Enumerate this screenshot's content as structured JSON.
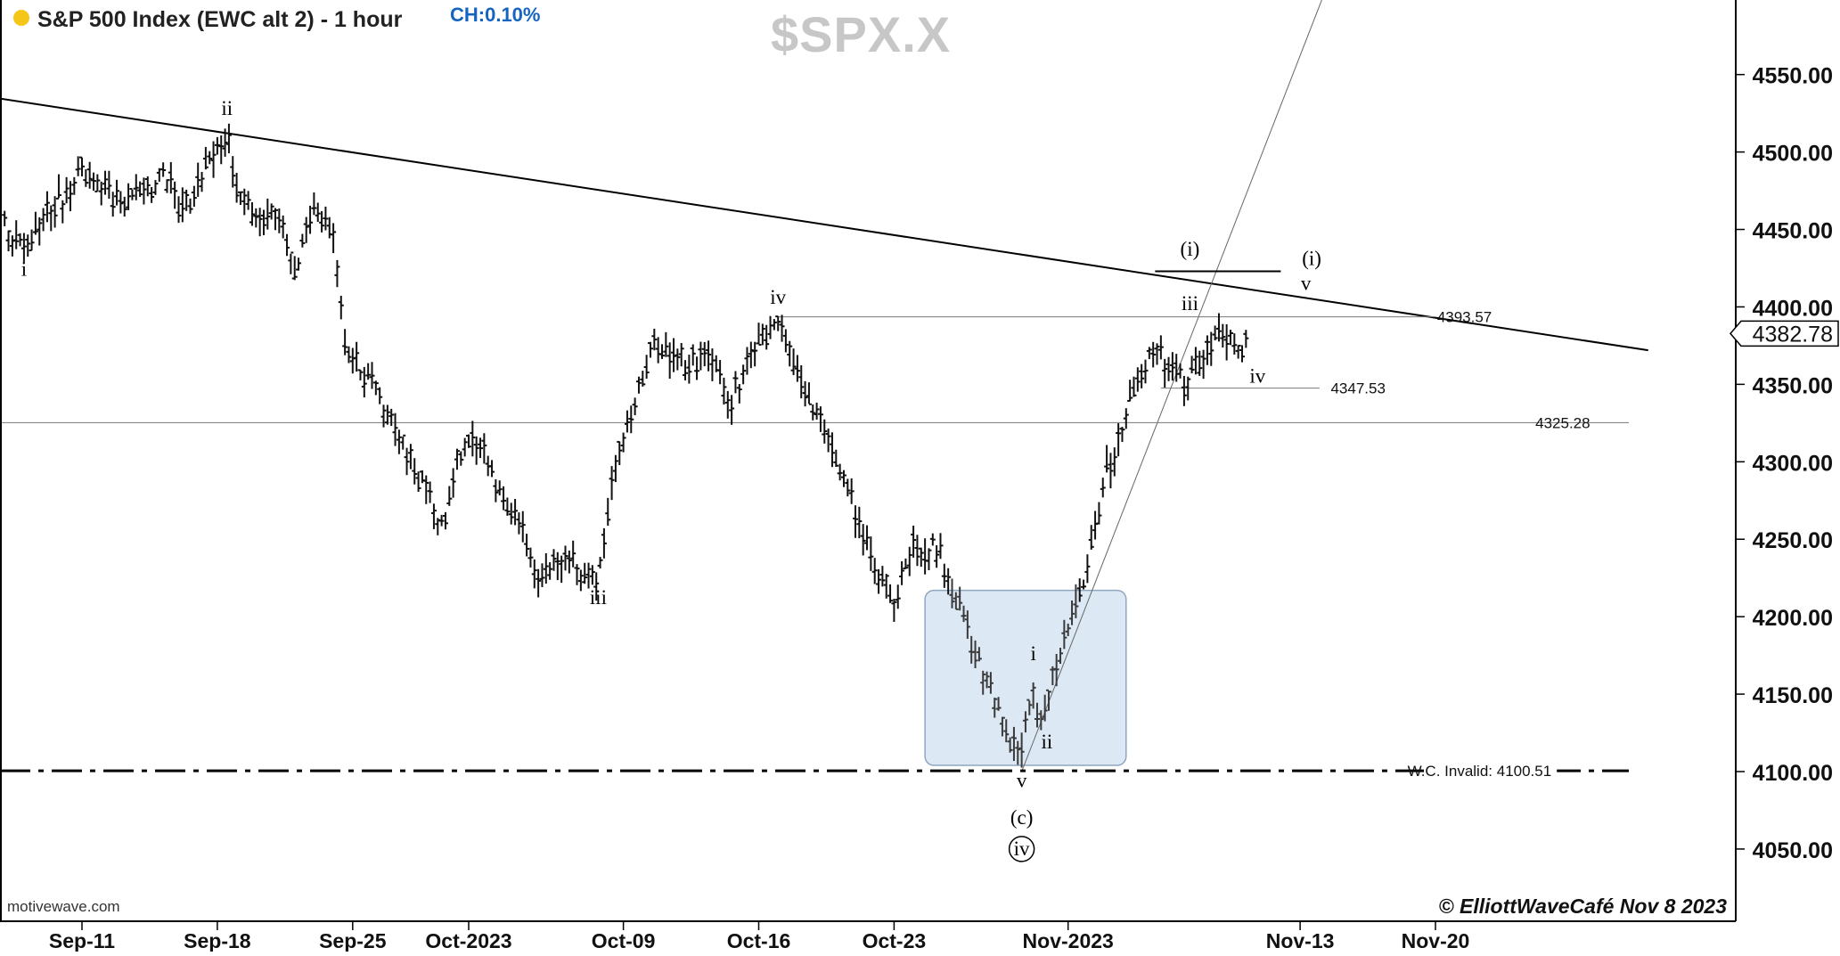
{
  "header": {
    "title": "S&P 500 Index (EWC alt 2) - 1 hour",
    "change": "CH:0.10%",
    "symbol": "$SPX.X",
    "source": "motivewave.com",
    "copyright": "© ElliottWaveCafé Nov 8 2023"
  },
  "colors": {
    "status_dot": "#f5c518",
    "change_text": "#1565c0",
    "symbol_text": "#c7c7c7",
    "bars": "#111111",
    "highlight_fill": "#dce9f5",
    "highlight_stroke": "#8fa6bf"
  },
  "chart_data": {
    "type": "ohlc",
    "title": "S&P 500 Index (EWC alt 2) - 1 hour",
    "y_axis": {
      "position": "right",
      "ylim": [
        4015,
        4615
      ],
      "ticks": [
        4050,
        4100,
        4150,
        4200,
        4250,
        4300,
        4350,
        4400,
        4450,
        4500,
        4550
      ],
      "tick_labels": [
        "4050.00",
        "4100.00",
        "4150.00",
        "4200.00",
        "4250.00",
        "4300.00",
        "4350.00",
        "4400.00",
        "4450.00",
        "4500.00",
        "4550.00"
      ]
    },
    "x_axis": {
      "ticks": [
        {
          "label": "Sep-11",
          "day": 0
        },
        {
          "label": "Sep-18",
          "day": 7
        },
        {
          "label": "Sep-25",
          "day": 14
        },
        {
          "label": "Oct-2023",
          "day": 20
        },
        {
          "label": "Oct-09",
          "day": 28
        },
        {
          "label": "Oct-16",
          "day": 35
        },
        {
          "label": "Oct-23",
          "day": 42
        },
        {
          "label": "Nov-2023",
          "day": 51
        },
        {
          "label": "Nov-13",
          "day": 63
        },
        {
          "label": "Nov-20",
          "day": 70
        }
      ]
    },
    "price_path": [
      {
        "day": -4,
        "v": 4455
      },
      {
        "day": -3,
        "v": 4435
      },
      {
        "day": -2,
        "v": 4460
      },
      {
        "day": -1,
        "v": 4470
      },
      {
        "day": 0,
        "v": 4490
      },
      {
        "day": 2,
        "v": 4465
      },
      {
        "day": 4.5,
        "v": 4485
      },
      {
        "day": 5,
        "v": 4460
      },
      {
        "day": 6.5,
        "v": 4490
      },
      {
        "day": 7.5,
        "v": 4510
      },
      {
        "day": 8,
        "v": 4480
      },
      {
        "day": 9,
        "v": 4455
      },
      {
        "day": 10,
        "v": 4460
      },
      {
        "day": 11,
        "v": 4425
      },
      {
        "day": 12,
        "v": 4460
      },
      {
        "day": 13,
        "v": 4450
      },
      {
        "day": 13.4,
        "v": 4400
      },
      {
        "day": 13.6,
        "v": 4375
      },
      {
        "day": 15,
        "v": 4350
      },
      {
        "day": 16,
        "v": 4330
      },
      {
        "day": 17,
        "v": 4300
      },
      {
        "day": 18,
        "v": 4275
      },
      {
        "day": 18.7,
        "v": 4255
      },
      {
        "day": 19.4,
        "v": 4300
      },
      {
        "day": 20.5,
        "v": 4315
      },
      {
        "day": 21.5,
        "v": 4285
      },
      {
        "day": 22.5,
        "v": 4265
      },
      {
        "day": 23.5,
        "v": 4225
      },
      {
        "day": 25,
        "v": 4240
      },
      {
        "day": 26,
        "v": 4225
      },
      {
        "day": 26.7,
        "v": 4225
      },
      {
        "day": 27.5,
        "v": 4295
      },
      {
        "day": 28.5,
        "v": 4330
      },
      {
        "day": 29.5,
        "v": 4375
      },
      {
        "day": 31,
        "v": 4365
      },
      {
        "day": 32.5,
        "v": 4365
      },
      {
        "day": 33.5,
        "v": 4335
      },
      {
        "day": 34.5,
        "v": 4370
      },
      {
        "day": 35.5,
        "v": 4380
      },
      {
        "day": 36,
        "v": 4390
      },
      {
        "day": 37,
        "v": 4355
      },
      {
        "day": 38,
        "v": 4330
      },
      {
        "day": 39,
        "v": 4305
      },
      {
        "day": 40,
        "v": 4265
      },
      {
        "day": 41,
        "v": 4235
      },
      {
        "day": 42,
        "v": 4210
      },
      {
        "day": 43,
        "v": 4245
      },
      {
        "day": 44,
        "v": 4245
      },
      {
        "day": 44.5,
        "v": 4235
      },
      {
        "day": 45.5,
        "v": 4200
      },
      {
        "day": 46.5,
        "v": 4170
      },
      {
        "day": 47.5,
        "v": 4135
      },
      {
        "day": 48.3,
        "v": 4115
      },
      {
        "day": 48.6,
        "v": 4110
      },
      {
        "day": 49.2,
        "v": 4155
      },
      {
        "day": 49.5,
        "v": 4130
      },
      {
        "day": 50.3,
        "v": 4165
      },
      {
        "day": 51,
        "v": 4195
      },
      {
        "day": 51.5,
        "v": 4215
      },
      {
        "day": 52,
        "v": 4230
      },
      {
        "day": 53,
        "v": 4295
      },
      {
        "day": 53.6,
        "v": 4310
      },
      {
        "day": 54.5,
        "v": 4355
      },
      {
        "day": 55.5,
        "v": 4370
      },
      {
        "day": 56.5,
        "v": 4360
      },
      {
        "day": 57,
        "v": 4350
      },
      {
        "day": 58,
        "v": 4370
      },
      {
        "day": 59,
        "v": 4385
      },
      {
        "day": 59.5,
        "v": 4380
      },
      {
        "day": 60,
        "v": 4370
      },
      {
        "day": 60.3,
        "v": 4382.78
      }
    ],
    "wave_labels": [
      {
        "text": "ii",
        "day": 7.5,
        "v": 4524,
        "style": "plain"
      },
      {
        "text": "i",
        "day": -3,
        "v": 4420,
        "style": "plain"
      },
      {
        "text": "iii",
        "day": 26.7,
        "v": 4208,
        "style": "plain"
      },
      {
        "text": "iv",
        "day": 36,
        "v": 4402,
        "style": "plain"
      },
      {
        "text": "v",
        "day": 48.6,
        "v": 4090,
        "style": "plain"
      },
      {
        "text": "i",
        "day": 49.2,
        "v": 4172,
        "style": "plain"
      },
      {
        "text": "ii",
        "day": 49.9,
        "v": 4115,
        "style": "plain"
      },
      {
        "text": "(c)",
        "day": 48.6,
        "v": 4066,
        "style": "plain"
      },
      {
        "text": "iv",
        "day": 48.6,
        "v": 4046,
        "style": "circled"
      },
      {
        "text": "(i)",
        "day": 57.3,
        "v": 4433,
        "style": "plain"
      },
      {
        "text": "iii",
        "day": 57.3,
        "v": 4398,
        "style": "plain"
      },
      {
        "text": "iv",
        "day": 60.8,
        "v": 4351,
        "style": "plain"
      },
      {
        "text": "(i)",
        "day": 63.6,
        "v": 4427,
        "style": "plain"
      },
      {
        "text": "v",
        "day": 63.3,
        "v": 4411,
        "style": "plain"
      }
    ],
    "price_levels": [
      {
        "label": "4393.57",
        "v": 4393.57,
        "from_day": 36,
        "to_day": 70,
        "label_day": 71.5,
        "style": "thin"
      },
      {
        "label": "4347.53",
        "v": 4347.53,
        "from_day": 55.8,
        "to_day": 64,
        "label_day": 66,
        "style": "thin"
      },
      {
        "label": "4325.28",
        "v": 4325.28,
        "from_day": -4.5,
        "to_day": 80,
        "label_day": 78,
        "style": "thin"
      },
      {
        "label": "W.C. Invalid: 4100.51",
        "v": 4100.51,
        "from_day": -4.5,
        "to_day": 80,
        "label_day": 76,
        "style": "dashdot"
      }
    ],
    "trendlines": [
      {
        "from": {
          "day": -4.5,
          "v": 4535
        },
        "to": {
          "day": 81,
          "v": 4372
        },
        "style": "thick"
      },
      {
        "from": {
          "day": 48.6,
          "v": 4100
        },
        "to": {
          "day": 64.8,
          "v": 4620
        },
        "style": "thin"
      }
    ],
    "horizontal_marks": [
      {
        "v": 4423,
        "from_day": 55.5,
        "to_day": 62
      }
    ],
    "current_price": {
      "label": "4382.78",
      "v": 4382.78
    },
    "highlight_box": {
      "from_day": 43.6,
      "to_day": 54,
      "from_v": 4104,
      "to_v": 4217
    }
  }
}
